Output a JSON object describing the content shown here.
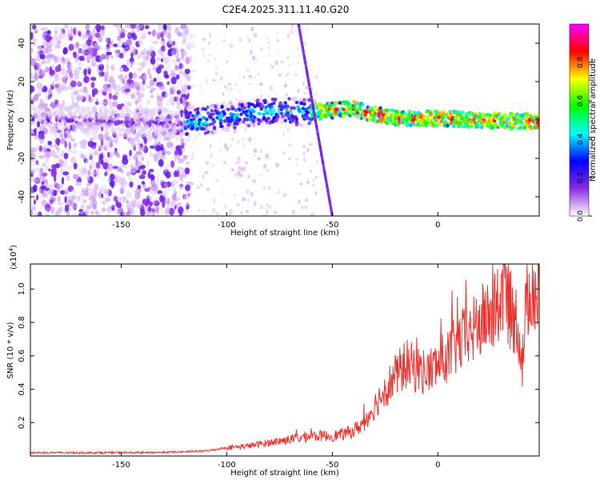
{
  "page": {
    "title": "C2E4.2025.311.11.40.G20"
  },
  "chart_data": [
    {
      "type": "heatmap",
      "xlabel": "Height of straight line (km)",
      "ylabel": "Frequency (Hz)",
      "xlim": [
        -193,
        48
      ],
      "ylim": [
        -50,
        50
      ],
      "xticks": [
        -150,
        -100,
        -50,
        0
      ],
      "yticks": [
        -40,
        -20,
        0,
        20,
        40
      ],
      "colorbar": {
        "label": "Normalized spectral amplitude",
        "range": [
          0,
          1
        ],
        "ticks": [
          "0.0",
          "0.2",
          "0.4",
          "0.6",
          "0.8"
        ],
        "tick_values": [
          0,
          0.2,
          0.4,
          0.6,
          0.8
        ],
        "colors": [
          "#ffffff",
          "#8a2be2",
          "#0000ff",
          "#00ffff",
          "#00ff00",
          "#ffff00",
          "#ff0000",
          "#ff00ff"
        ]
      },
      "features": [
        {
          "name": "central band",
          "points": [
            [
              -170,
              0
            ],
            [
              -120,
              -2
            ],
            [
              -100,
              2
            ],
            [
              -75,
              5
            ],
            [
              -60,
              4
            ],
            [
              -40,
              6
            ],
            [
              -30,
              3
            ],
            [
              -20,
              1
            ],
            [
              0,
              1
            ],
            [
              20,
              0
            ],
            [
              48,
              -1
            ]
          ]
        },
        {
          "name": "diagonal streak",
          "points": [
            [
              -66,
              50
            ],
            [
              -57,
              0
            ],
            [
              -50,
              -50
            ]
          ]
        }
      ]
    },
    {
      "type": "line",
      "xlabel": "Height of straight line (km)",
      "ylabel": "SNR (10 * v/v)",
      "y_multiplier": "(x10",
      "y_multiplier_exp": "4",
      "xlim": [
        -193,
        48
      ],
      "ylim": [
        0,
        1.15
      ],
      "xticks": [
        -150,
        -100,
        -50,
        0
      ],
      "yticks": [
        0.2,
        0.4,
        0.6,
        0.8,
        1.0
      ],
      "ytick_labels": [
        "0.2",
        "0.4",
        "0.6",
        "0.8",
        "1.0"
      ],
      "series": [
        {
          "color": "#e8312d",
          "x": [
            -193,
            -180,
            -160,
            -140,
            -120,
            -110,
            -100,
            -90,
            -80,
            -70,
            -60,
            -50,
            -45,
            -40,
            -35,
            -30,
            -25,
            -20,
            -15,
            -10,
            -5,
            0,
            5,
            10,
            15,
            20,
            25,
            28,
            30,
            32,
            33,
            35,
            38,
            40,
            42,
            44,
            46,
            48
          ],
          "y": [
            0.02,
            0.02,
            0.02,
            0.02,
            0.025,
            0.03,
            0.05,
            0.06,
            0.08,
            0.1,
            0.12,
            0.12,
            0.13,
            0.15,
            0.2,
            0.3,
            0.4,
            0.48,
            0.55,
            0.52,
            0.5,
            0.55,
            0.6,
            0.68,
            0.72,
            0.8,
            0.85,
            0.87,
            0.9,
            1.12,
            0.9,
            0.86,
            0.8,
            0.55,
            0.9,
            1.05,
            0.98,
            0.92
          ]
        }
      ]
    }
  ]
}
